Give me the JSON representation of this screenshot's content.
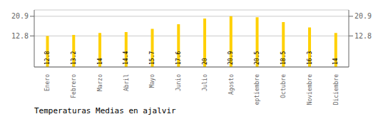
{
  "chart_data": {
    "type": "bar",
    "title": "Temperaturas Medias en ajalvir",
    "categories": [
      "Enero",
      "Febrero",
      "Marzo",
      "Abril",
      "Mayo",
      "Junio",
      "Julio",
      "Agosto",
      "Septiembre",
      "Octubre",
      "Noviembre",
      "Diciembre"
    ],
    "values": [
      12.8,
      13.2,
      14.0,
      14.4,
      15.7,
      17.6,
      20.0,
      20.9,
      20.5,
      18.5,
      16.3,
      14.0
    ],
    "color": "#FFD000",
    "ylim": [
      0,
      23.5
    ],
    "yticks": [
      12.8,
      20.9
    ],
    "grid": true,
    "data_labels": true
  }
}
